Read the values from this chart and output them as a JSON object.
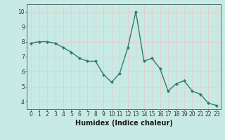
{
  "x": [
    0,
    1,
    2,
    3,
    4,
    5,
    6,
    7,
    8,
    9,
    10,
    11,
    12,
    13,
    14,
    15,
    16,
    17,
    18,
    19,
    20,
    21,
    22,
    23
  ],
  "y": [
    7.9,
    8.0,
    8.0,
    7.9,
    7.6,
    7.3,
    6.9,
    6.7,
    6.7,
    5.8,
    5.3,
    5.9,
    7.6,
    10.0,
    6.7,
    6.9,
    6.2,
    4.7,
    5.2,
    5.4,
    4.7,
    4.5,
    3.9,
    3.75
  ],
  "line_color": "#2e7d6e",
  "marker": "D",
  "marker_size": 2.2,
  "bg_color": "#c8eae4",
  "grid_color": "#e8c8c8",
  "xlabel": "Humidex (Indice chaleur)",
  "xlim": [
    -0.5,
    23.5
  ],
  "ylim": [
    3.5,
    10.5
  ],
  "yticks": [
    4,
    5,
    6,
    7,
    8,
    9,
    10
  ],
  "xticks": [
    0,
    1,
    2,
    3,
    4,
    5,
    6,
    7,
    8,
    9,
    10,
    11,
    12,
    13,
    14,
    15,
    16,
    17,
    18,
    19,
    20,
    21,
    22,
    23
  ],
  "xtick_labels": [
    "0",
    "1",
    "2",
    "3",
    "4",
    "5",
    "6",
    "7",
    "8",
    "9",
    "10",
    "11",
    "12",
    "13",
    "14",
    "15",
    "16",
    "17",
    "18",
    "19",
    "20",
    "21",
    "22",
    "23"
  ],
  "tick_fontsize": 5.5,
  "xlabel_fontsize": 7,
  "line_width": 1.0
}
